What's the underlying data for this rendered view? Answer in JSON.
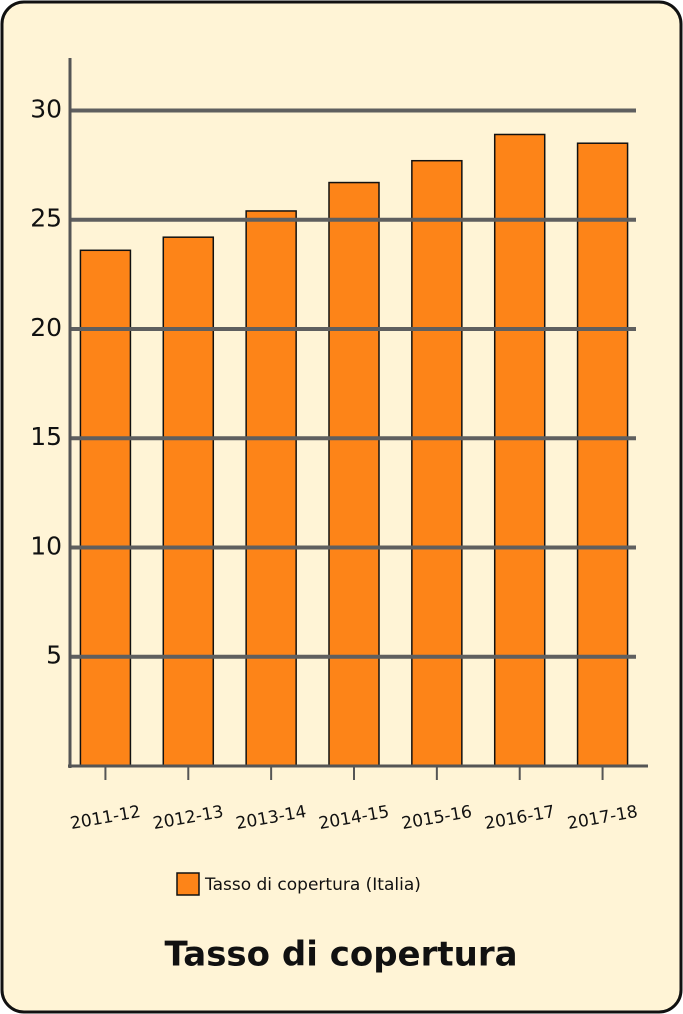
{
  "chart_data": {
    "type": "bar",
    "title": "Tasso di copertura",
    "categories": [
      "2011-12",
      "2012-13",
      "2013-14",
      "2014-15",
      "2015-16",
      "2016-17",
      "2017-18"
    ],
    "series": [
      {
        "name": "Tasso di copertura (Italia)",
        "color": "#fd8418",
        "values": [
          23.6,
          24.2,
          25.4,
          26.7,
          27.7,
          28.9,
          28.5
        ]
      }
    ],
    "ylim": [
      0,
      32.4
    ],
    "yticks": [
      5,
      10,
      15,
      20,
      25,
      30
    ],
    "grid": true
  }
}
